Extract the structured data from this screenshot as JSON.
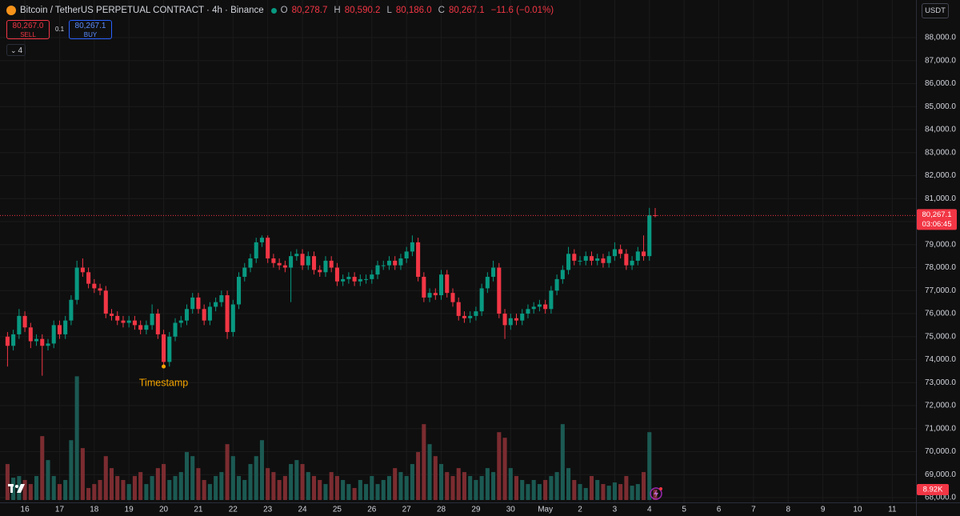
{
  "chart_data": {
    "type": "candlestick",
    "title": "Bitcoin / TetherUS PERPETUAL CONTRACT · 4h · Binance",
    "ohlc_letters": [
      "O",
      "H",
      "L",
      "C"
    ],
    "last_labels": {
      "open": "80,278.7",
      "high": "80,590.2",
      "low": "80,186.0",
      "close": "80,267.1"
    },
    "change": -11.6,
    "change_label": "−11.6 (−0.01%)",
    "trade": {
      "sell_price": "80,267.0",
      "sell": "SELL",
      "spread": "0.1",
      "buy_price": "80,267.1",
      "buy": "BUY"
    },
    "indicators_count": "4",
    "currency": "USDT",
    "last_price_label": "80,267.1",
    "countdown": "03:06:45",
    "last_volume_label": "8.92K",
    "annotation": {
      "text": "Timestamp",
      "index": 27
    },
    "up_color": "#089981",
    "down_color": "#f23645",
    "volume_up_color": "#1b5a53",
    "volume_down_color": "#7b2c30",
    "open": [
      75000,
      74600,
      75100,
      75900,
      75400,
      74800,
      74900,
      74600,
      74700,
      75500,
      75100,
      75700,
      76600,
      78000,
      77800,
      77300,
      77100,
      77000,
      76000,
      75900,
      75700,
      75600,
      75700,
      75500,
      75300,
      75500,
      76000,
      75100,
      73900,
      75000,
      75600,
      75700,
      76200,
      76700,
      76200,
      75700,
      76300,
      76500,
      76800,
      75200,
      76400,
      77600,
      78000,
      78400,
      79100,
      79300,
      78400,
      78200,
      78100,
      78000,
      78500,
      78600,
      78100,
      78500,
      77900,
      77800,
      78300,
      78000,
      77400,
      77500,
      77600,
      77400,
      77500,
      77500,
      77700,
      78100,
      78100,
      78300,
      78100,
      78400,
      78700,
      79100,
      77600,
      76700,
      76900,
      76800,
      77700,
      76900,
      76500,
      75900,
      75800,
      75900,
      76100,
      77100,
      77600,
      78000,
      76000,
      75500,
      75800,
      75700,
      76000,
      76200,
      76300,
      76400,
      76200,
      77000,
      77500,
      77900,
      78600,
      78300,
      78300,
      78500,
      78300,
      78400,
      78200,
      78500,
      78800,
      78600,
      78100,
      78300,
      78700,
      78500,
      80278.7
    ],
    "high": [
      75200,
      75300,
      76200,
      76100,
      75600,
      75100,
      75100,
      74900,
      75700,
      75700,
      75900,
      76800,
      78300,
      78400,
      78000,
      77500,
      77300,
      77200,
      76200,
      76100,
      75900,
      75900,
      75900,
      75700,
      75700,
      76400,
      76200,
      75300,
      75200,
      75800,
      75900,
      76400,
      76900,
      76900,
      76400,
      76500,
      76700,
      77000,
      77000,
      76600,
      77800,
      78200,
      78600,
      79300,
      79400,
      79400,
      78600,
      78400,
      78300,
      78700,
      78800,
      78800,
      78700,
      78700,
      78100,
      78500,
      78500,
      78200,
      77700,
      77800,
      77800,
      77700,
      77700,
      77900,
      78300,
      78300,
      78500,
      78500,
      78600,
      78900,
      79400,
      79300,
      77800,
      77100,
      77100,
      77900,
      77900,
      77100,
      76700,
      76100,
      76100,
      76300,
      77300,
      77800,
      78300,
      78200,
      76200,
      76000,
      76000,
      76200,
      76400,
      76500,
      76600,
      76600,
      77200,
      77700,
      78100,
      78900,
      78800,
      78500,
      78700,
      78700,
      78600,
      78600,
      78700,
      79100,
      79000,
      78800,
      78500,
      78900,
      79400,
      80600,
      80590.2
    ],
    "low": [
      73700,
      74400,
      74900,
      75200,
      74500,
      74600,
      73300,
      74400,
      74500,
      74900,
      74900,
      75500,
      76400,
      77600,
      77100,
      76900,
      76800,
      75800,
      75700,
      75500,
      75400,
      75400,
      75300,
      75100,
      75100,
      75300,
      74900,
      73700,
      73700,
      74800,
      75400,
      75500,
      76000,
      76000,
      75500,
      75500,
      76100,
      76300,
      74900,
      75000,
      76200,
      77400,
      77800,
      78200,
      78900,
      78200,
      78000,
      77900,
      77800,
      76500,
      78300,
      77900,
      77900,
      77700,
      77600,
      77600,
      77800,
      77200,
      77200,
      77300,
      77200,
      77200,
      77300,
      77300,
      77500,
      77900,
      77900,
      77900,
      77900,
      78200,
      78500,
      77400,
      76500,
      76500,
      76600,
      76600,
      76700,
      76300,
      75700,
      75600,
      75600,
      75700,
      75900,
      76900,
      77400,
      75800,
      74900,
      75300,
      75500,
      75500,
      75800,
      76000,
      76100,
      76000,
      76000,
      76800,
      77300,
      77700,
      78100,
      78100,
      78100,
      78100,
      78100,
      78000,
      78000,
      78300,
      78400,
      77900,
      77900,
      78100,
      78300,
      78300,
      80186.0
    ],
    "close": [
      74600,
      75100,
      75900,
      75400,
      74800,
      74900,
      74600,
      74700,
      75500,
      75100,
      75700,
      76600,
      78000,
      77800,
      77300,
      77100,
      77000,
      76000,
      75900,
      75700,
      75600,
      75700,
      75500,
      75300,
      75500,
      76000,
      75100,
      73900,
      75000,
      75600,
      75700,
      76200,
      76700,
      76200,
      75700,
      76300,
      76500,
      76800,
      75200,
      76400,
      77600,
      78000,
      78400,
      79100,
      79300,
      78400,
      78200,
      78100,
      78000,
      78500,
      78600,
      78100,
      78500,
      77900,
      77800,
      78300,
      78000,
      77400,
      77500,
      77600,
      77400,
      77500,
      77500,
      77700,
      78100,
      78100,
      78300,
      78100,
      78400,
      78700,
      79100,
      77600,
      76700,
      76900,
      76800,
      77700,
      76900,
      76500,
      75900,
      75800,
      75900,
      76100,
      77100,
      77600,
      78000,
      76000,
      75500,
      75800,
      75700,
      76000,
      76200,
      76300,
      76400,
      76200,
      77000,
      77500,
      77900,
      78600,
      78300,
      78300,
      78500,
      78300,
      78400,
      78200,
      78500,
      78800,
      78600,
      78100,
      78300,
      78700,
      78500,
      80278.7,
      80267.1
    ],
    "volume": [
      30900,
      19200,
      20600,
      17200,
      13700,
      20600,
      54900,
      34300,
      20600,
      13700,
      17200,
      51400,
      106300,
      44600,
      10300,
      13700,
      17200,
      37700,
      27400,
      20600,
      17200,
      13700,
      20600,
      24000,
      13700,
      20600,
      27400,
      30900,
      17200,
      20600,
      24000,
      41200,
      37700,
      27400,
      17200,
      13700,
      20600,
      24000,
      48000,
      37700,
      20600,
      17200,
      30900,
      37700,
      51400,
      27400,
      24000,
      17200,
      20600,
      30900,
      34300,
      30900,
      24000,
      20600,
      17200,
      13700,
      24000,
      20600,
      17200,
      13700,
      10300,
      17200,
      13700,
      20600,
      13700,
      17200,
      20600,
      27400,
      24000,
      20600,
      30900,
      41200,
      65200,
      48000,
      37700,
      30900,
      24000,
      20600,
      27400,
      24000,
      20600,
      17200,
      20600,
      27400,
      24000,
      58300,
      53500,
      27400,
      20600,
      17200,
      13700,
      17200,
      13700,
      17200,
      20600,
      24000,
      65200,
      27400,
      17200,
      13700,
      10300,
      20600,
      17200,
      13700,
      12300,
      15100,
      13700,
      20600,
      12300,
      13700,
      24000,
      58300,
      8920
    ],
    "ylim": [
      67793,
      89635
    ],
    "yticks": [
      {
        "value": 68000,
        "label": "68,000.0"
      },
      {
        "value": 69000,
        "label": "69,000.0"
      },
      {
        "value": 70000,
        "label": "70,000.0"
      },
      {
        "value": 71000,
        "label": "71,000.0"
      },
      {
        "value": 72000,
        "label": "72,000.0"
      },
      {
        "value": 73000,
        "label": "73,000.0"
      },
      {
        "value": 74000,
        "label": "74,000.0"
      },
      {
        "value": 75000,
        "label": "75,000.0"
      },
      {
        "value": 76000,
        "label": "76,000.0"
      },
      {
        "value": 77000,
        "label": "77,000.0"
      },
      {
        "value": 78000,
        "label": "78,000.0"
      },
      {
        "value": 79000,
        "label": "79,000.0"
      },
      {
        "value": 80000,
        "label": "80,000.0"
      },
      {
        "value": 81000,
        "label": "81,000.0"
      },
      {
        "value": 82000,
        "label": "82,000.0"
      },
      {
        "value": 83000,
        "label": "83,000.0"
      },
      {
        "value": 84000,
        "label": "84,000.0"
      },
      {
        "value": 85000,
        "label": "85,000.0"
      },
      {
        "value": 86000,
        "label": "86,000.0"
      },
      {
        "value": 87000,
        "label": "87,000.0"
      },
      {
        "value": 88000,
        "label": "88,000.0"
      }
    ],
    "vlim": [
      0,
      110000
    ],
    "xlim": [
      -1.3,
      157.1
    ],
    "xticks": [
      {
        "value": 3,
        "label": "16"
      },
      {
        "value": 9,
        "label": "17"
      },
      {
        "value": 15,
        "label": "18"
      },
      {
        "value": 21,
        "label": "19"
      },
      {
        "value": 27,
        "label": "20"
      },
      {
        "value": 33,
        "label": "21"
      },
      {
        "value": 39,
        "label": "22"
      },
      {
        "value": 45,
        "label": "23"
      },
      {
        "value": 51,
        "label": "24"
      },
      {
        "value": 57,
        "label": "25"
      },
      {
        "value": 63,
        "label": "26"
      },
      {
        "value": 69,
        "label": "27"
      },
      {
        "value": 75,
        "label": "28"
      },
      {
        "value": 81,
        "label": "29"
      },
      {
        "value": 87,
        "label": "30"
      },
      {
        "value": 93,
        "label": "May"
      },
      {
        "value": 99,
        "label": "2"
      },
      {
        "value": 105,
        "label": "3"
      },
      {
        "value": 111,
        "label": "4"
      },
      {
        "value": 117,
        "label": "5"
      },
      {
        "value": 123,
        "label": "6"
      },
      {
        "value": 129,
        "label": "7"
      },
      {
        "value": 135,
        "label": "8"
      },
      {
        "value": 141,
        "label": "9"
      },
      {
        "value": 147,
        "label": "10"
      },
      {
        "value": 153,
        "label": "11"
      }
    ],
    "grid": true
  }
}
